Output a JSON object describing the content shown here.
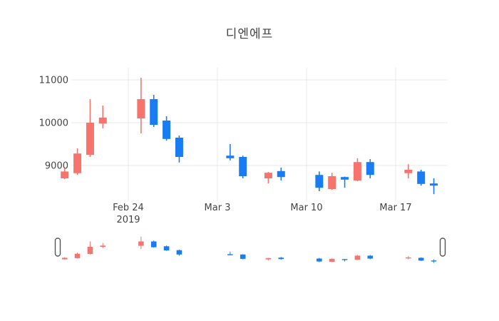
{
  "chart_data": {
    "type": "candlestick",
    "title": "디엔에프",
    "xlabel": "",
    "ylabel": "",
    "legend": "none",
    "grid": true,
    "y_axis": {
      "ticks": [
        11000,
        10000,
        9000
      ],
      "range": [
        8250,
        11300
      ]
    },
    "x_axis": {
      "ticks": [
        {
          "label": "Feb 24",
          "sublabel": "2019",
          "date": "2019-02-24"
        },
        {
          "label": "Mar 3",
          "sublabel": "",
          "date": "2019-03-03"
        },
        {
          "label": "Mar 10",
          "sublabel": "",
          "date": "2019-03-10"
        },
        {
          "label": "Mar 17",
          "sublabel": "",
          "date": "2019-03-17"
        }
      ]
    },
    "rangeslider": {
      "enabled": true,
      "handles": [
        "left",
        "right"
      ]
    },
    "colors": {
      "increasing": "#F5756E",
      "decreasing": "#1A7CF2",
      "grid": "#E8E8E8",
      "text": "#444444",
      "handle_border": "#555555",
      "background": "#FFFFFF"
    },
    "ohlc": [
      {
        "date": "2019-02-19",
        "open": 8700,
        "high": 8930,
        "low": 8680,
        "close": 8860
      },
      {
        "date": "2019-02-20",
        "open": 8820,
        "high": 9400,
        "low": 8780,
        "close": 9280
      },
      {
        "date": "2019-02-21",
        "open": 9250,
        "high": 10550,
        "low": 9200,
        "close": 10000
      },
      {
        "date": "2019-02-22",
        "open": 9980,
        "high": 10400,
        "low": 9870,
        "close": 10120
      },
      {
        "date": "2019-02-25",
        "open": 10100,
        "high": 11050,
        "low": 9750,
        "close": 10550
      },
      {
        "date": "2019-02-26",
        "open": 10550,
        "high": 10650,
        "low": 9900,
        "close": 9950
      },
      {
        "date": "2019-02-27",
        "open": 10050,
        "high": 10150,
        "low": 9580,
        "close": 9620
      },
      {
        "date": "2019-02-28",
        "open": 9650,
        "high": 9700,
        "low": 9070,
        "close": 9200
      },
      {
        "date": "2019-03-04",
        "open": 9230,
        "high": 9500,
        "low": 9120,
        "close": 9170
      },
      {
        "date": "2019-03-05",
        "open": 9200,
        "high": 9230,
        "low": 8700,
        "close": 8750
      },
      {
        "date": "2019-03-07",
        "open": 8700,
        "high": 8850,
        "low": 8580,
        "close": 8830
      },
      {
        "date": "2019-03-08",
        "open": 8870,
        "high": 8950,
        "low": 8650,
        "close": 8730
      },
      {
        "date": "2019-03-11",
        "open": 8780,
        "high": 8860,
        "low": 8400,
        "close": 8480
      },
      {
        "date": "2019-03-12",
        "open": 8450,
        "high": 8830,
        "low": 8430,
        "close": 8750
      },
      {
        "date": "2019-03-13",
        "open": 8730,
        "high": 8740,
        "low": 8480,
        "close": 8670
      },
      {
        "date": "2019-03-14",
        "open": 8650,
        "high": 9170,
        "low": 8630,
        "close": 9080
      },
      {
        "date": "2019-03-15",
        "open": 9080,
        "high": 9150,
        "low": 8700,
        "close": 8780
      },
      {
        "date": "2019-03-18",
        "open": 8820,
        "high": 9030,
        "low": 8700,
        "close": 8900
      },
      {
        "date": "2019-03-19",
        "open": 8860,
        "high": 8900,
        "low": 8530,
        "close": 8570
      },
      {
        "date": "2019-03-20",
        "open": 8580,
        "high": 8700,
        "low": 8330,
        "close": 8530
      }
    ]
  }
}
